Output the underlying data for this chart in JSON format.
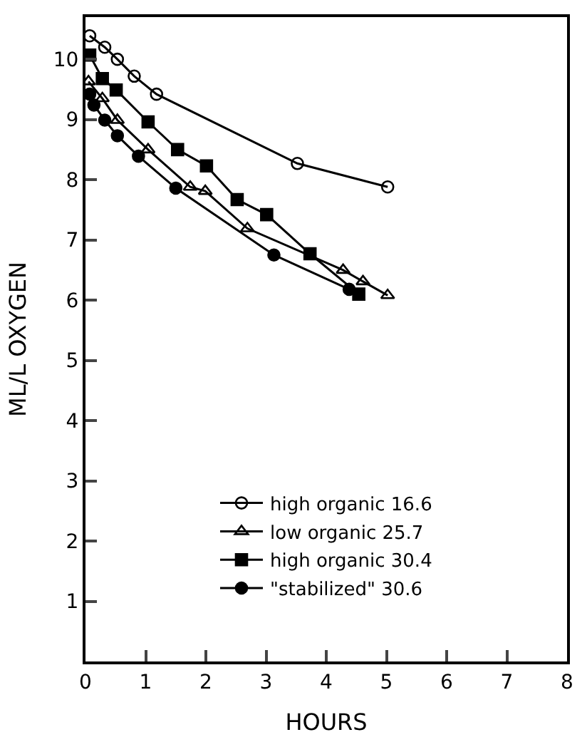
{
  "chart_data": {
    "type": "line",
    "xlabel": "HOURS",
    "ylabel": "ML/L OXYGEN",
    "xlim": [
      0,
      8
    ],
    "ylim": [
      0,
      10.7
    ],
    "xticks": [
      0,
      1,
      2,
      3,
      4,
      5,
      6,
      7,
      8
    ],
    "yticks": [
      1,
      2,
      3,
      4,
      5,
      6,
      7,
      8,
      9,
      10
    ],
    "legend": "bottom",
    "line_style": "solid",
    "series": [
      {
        "name": "high organic 16.6",
        "color": "#000000",
        "marker": "circle-open",
        "x": [
          0.07,
          0.32,
          0.53,
          0.81,
          1.18,
          3.52,
          5.02
        ],
        "values": [
          10.39,
          10.2,
          10.0,
          9.72,
          9.42,
          8.27,
          7.88
        ]
      },
      {
        "name": "low organic 25.7",
        "color": "#000000",
        "marker": "triangle-open",
        "x": [
          0.05,
          0.28,
          0.53,
          1.04,
          1.74,
          1.99,
          2.69,
          4.28,
          4.61,
          5.02
        ],
        "values": [
          9.63,
          9.35,
          8.99,
          8.5,
          7.88,
          7.81,
          7.19,
          6.5,
          6.31,
          6.08
        ]
      },
      {
        "name": "high organic 30.4",
        "color": "#000000",
        "marker": "square",
        "x": [
          0.07,
          0.28,
          0.51,
          1.04,
          1.53,
          2.01,
          2.52,
          3.01,
          3.73,
          4.54
        ],
        "values": [
          10.07,
          9.68,
          9.49,
          8.96,
          8.5,
          8.23,
          7.67,
          7.42,
          6.77,
          6.1
        ]
      },
      {
        "name": "\"stabilized\" 30.6",
        "color": "#000000",
        "marker": "circle",
        "x": [
          0.07,
          0.14,
          0.32,
          0.53,
          0.88,
          1.5,
          3.13,
          4.38
        ],
        "values": [
          9.42,
          9.24,
          8.99,
          8.73,
          8.39,
          7.86,
          6.75,
          6.18
        ]
      }
    ]
  }
}
